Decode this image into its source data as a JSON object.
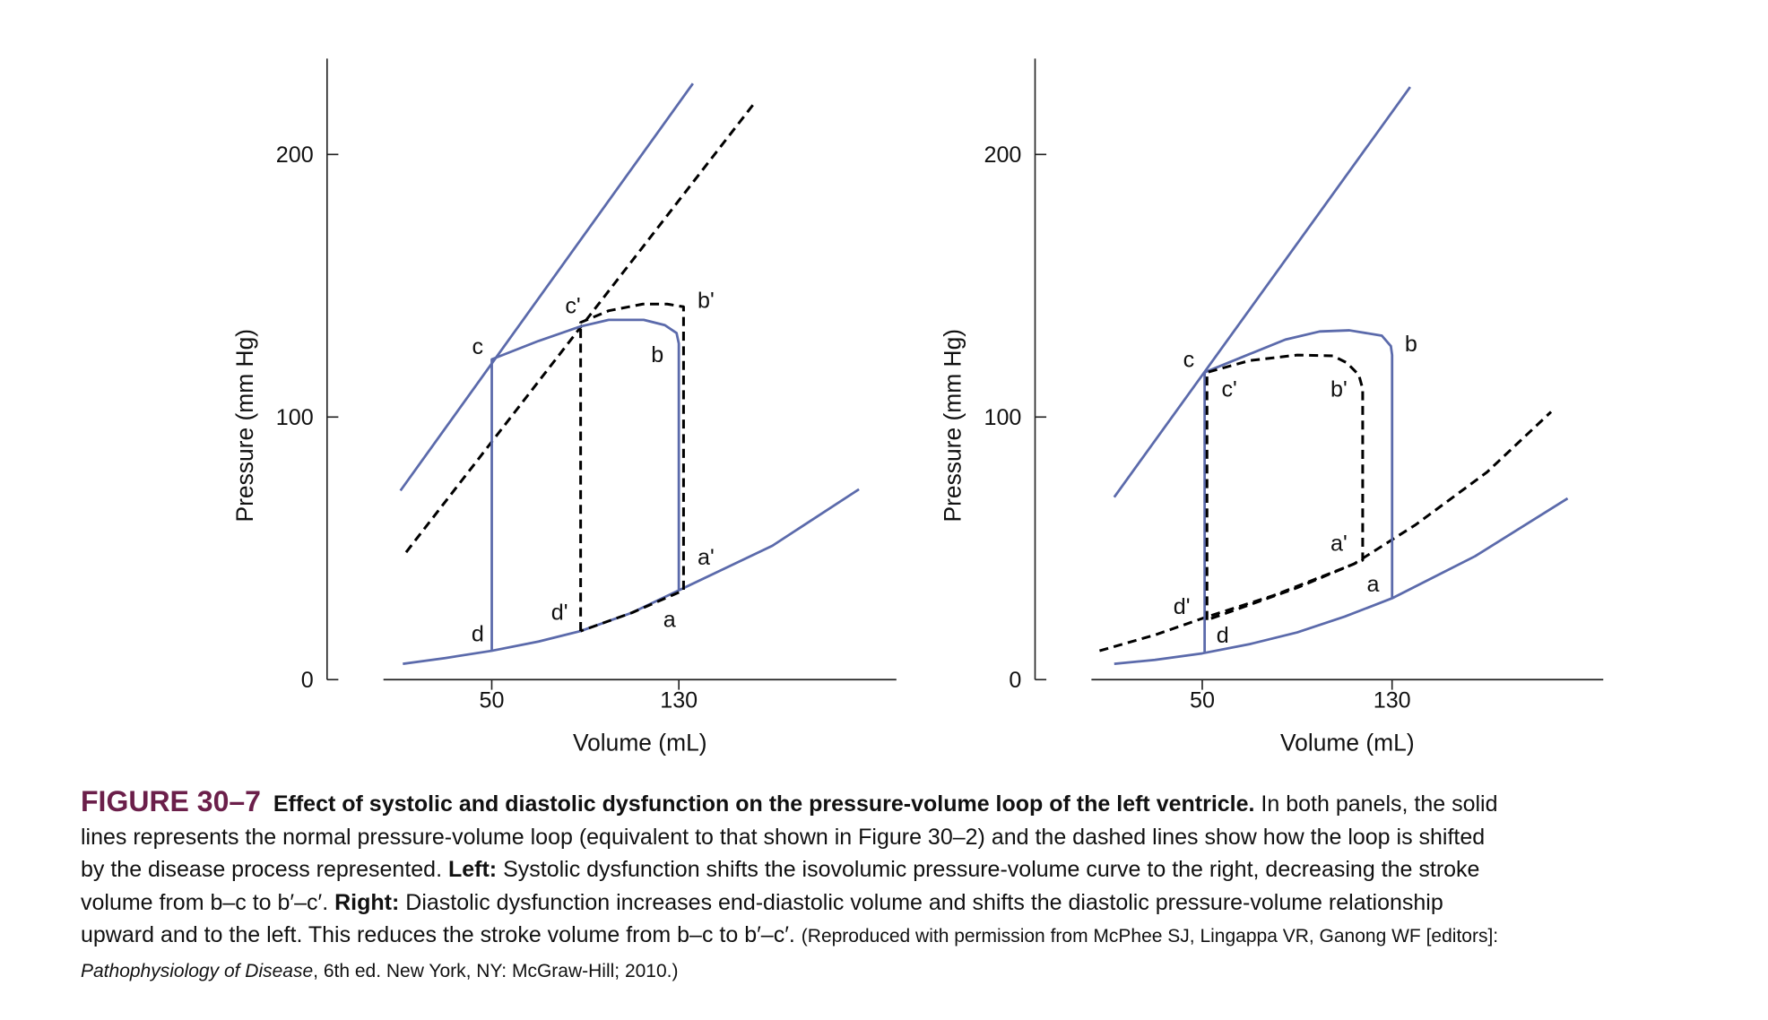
{
  "chart_data": [
    {
      "type": "line",
      "xlabel": "Volume (mL)",
      "ylabel": "Pressure (mm Hg)",
      "xlim": [
        3.7,
        223
      ],
      "ylim": [
        0,
        236.5
      ],
      "xticks": [
        50,
        130
      ],
      "yticks": [
        0,
        100,
        200
      ],
      "series": [
        {
          "color": "#5b6aab",
          "dashed": false,
          "x": [
            11,
            136
          ],
          "values": [
            72,
            227
          ]
        },
        {
          "color": "#000000",
          "dashed": true,
          "x": [
            13.4,
            161.8
          ],
          "values": [
            48.5,
            219
          ]
        },
        {
          "color": "#5b6aab",
          "dashed": false,
          "x": [
            12,
            30,
            50,
            70,
            88,
            110,
            130,
            170,
            207
          ],
          "values": [
            6,
            8.2,
            11,
            14.5,
            18.5,
            25.5,
            34,
            51,
            72.5
          ]
        },
        {
          "color": "#5b6aab",
          "dashed": false,
          "x": [
            50,
            50,
            70,
            88,
            100,
            115,
            124,
            129,
            130,
            130
          ],
          "values": [
            11,
            122,
            129,
            134.5,
            137,
            137,
            135,
            132,
            128,
            34
          ]
        },
        {
          "color": "#000000",
          "dashed": true,
          "x": [
            88,
            88,
            100,
            114.6,
            125,
            132,
            132,
            110,
            88
          ],
          "values": [
            18.5,
            136,
            140.5,
            143,
            143,
            142,
            34,
            25.5,
            18.5
          ]
        }
      ],
      "annotations": [
        {
          "text": "c",
          "x": 44,
          "y": 127
        },
        {
          "text": "b'",
          "x": 141.6,
          "y": 144.6
        },
        {
          "text": "c'",
          "x": 84.7,
          "y": 142.5
        },
        {
          "text": "b",
          "x": 120.8,
          "y": 124
        },
        {
          "text": "a'",
          "x": 141.6,
          "y": 46.8
        },
        {
          "text": "a",
          "x": 126,
          "y": 23
        },
        {
          "text": "d'",
          "x": 79,
          "y": 25.8
        },
        {
          "text": "d",
          "x": 44,
          "y": 17.6
        }
      ]
    },
    {
      "type": "line",
      "xlabel": "Volume (mL)",
      "ylabel": "Pressure (mm Hg)",
      "xlim": [
        3.3,
        219
      ],
      "ylim": [
        0,
        236.5
      ],
      "xticks": [
        50,
        130
      ],
      "yticks": [
        0,
        100,
        200
      ],
      "series": [
        {
          "color": "#5b6aab",
          "dashed": false,
          "x": [
            12.9,
            137.6
          ],
          "values": [
            69.5,
            225.7
          ]
        },
        {
          "color": "#5b6aab",
          "dashed": false,
          "x": [
            12.9,
            30,
            50,
            70,
            90,
            110,
            130,
            165,
            204
          ],
          "values": [
            6,
            7.5,
            10,
            13.5,
            18,
            24,
            31,
            47,
            69
          ]
        },
        {
          "color": "#000000",
          "dashed": true,
          "x": [
            6.7,
            30,
            51,
            80,
            113.8,
            140,
            170,
            197
          ],
          "values": [
            11,
            17,
            23.6,
            32,
            44,
            59,
            79,
            102
          ]
        },
        {
          "color": "#5b6aab",
          "dashed": false,
          "x": [
            51,
            51,
            70,
            85,
            99.5,
            112,
            125.7,
            129.5,
            130,
            130
          ],
          "values": [
            10,
            117,
            124,
            129.5,
            132.6,
            133,
            131,
            127,
            123.6,
            31
          ]
        },
        {
          "color": "#000000",
          "dashed": true,
          "x": [
            52,
            52,
            70,
            90,
            105,
            111,
            116,
            117.6,
            117.6,
            90,
            70,
            52
          ],
          "values": [
            22.7,
            117,
            121.5,
            123.6,
            123.3,
            120.6,
            116,
            110.7,
            45.5,
            35,
            28.5,
            22.7
          ]
        }
      ],
      "annotations": [
        {
          "text": "c",
          "x": 44.3,
          "y": 122
        },
        {
          "text": "b",
          "x": 138,
          "y": 128
        },
        {
          "text": "c'",
          "x": 61.4,
          "y": 110.7
        },
        {
          "text": "b'",
          "x": 107.6,
          "y": 110.7
        },
        {
          "text": "a'",
          "x": 107.6,
          "y": 52
        },
        {
          "text": "a",
          "x": 122,
          "y": 36.5
        },
        {
          "text": "d'",
          "x": 41.4,
          "y": 28
        },
        {
          "text": "d",
          "x": 58.6,
          "y": 17
        }
      ]
    }
  ],
  "caption": {
    "lines": [
      [
        {
          "text": "FIGURE 30–7",
          "style": "label"
        },
        {
          "text": "  Effect of systolic and diastolic dysfunction on the pressure-volume loop of the left ventricle.",
          "style": "bold"
        },
        {
          "text": " In both panels, the solid"
        }
      ],
      [
        {
          "text": "lines represents the normal pressure-volume loop (equivalent to that shown in Figure 30–2) and the dashed lines show how the loop is shifted"
        }
      ],
      [
        {
          "text": "by the disease process represented. "
        },
        {
          "text": "Left:",
          "style": "bold"
        },
        {
          "text": " Systolic dysfunction shifts the isovolumic pressure-volume curve to the right, decreasing the stroke"
        }
      ],
      [
        {
          "text": "volume from b–c to b′–c′. "
        },
        {
          "text": "Right:",
          "style": "bold"
        },
        {
          "text": " Diastolic dysfunction increases end-diastolic volume and shifts the diastolic pressure-volume relationship"
        }
      ],
      [
        {
          "text": "upward and to the left. This reduces the stroke volume from b–c to b′–c′. "
        },
        {
          "text": "(Reproduced with permission from McPhee SJ, Lingappa VR, Ganong WF [editors]:",
          "style": "small"
        }
      ],
      [
        {
          "text": "Pathophysiology of Disease",
          "style": "small-italic"
        },
        {
          "text": ", 6th ed. New York, NY: McGraw-Hill; 2010.)",
          "style": "small"
        }
      ]
    ]
  }
}
